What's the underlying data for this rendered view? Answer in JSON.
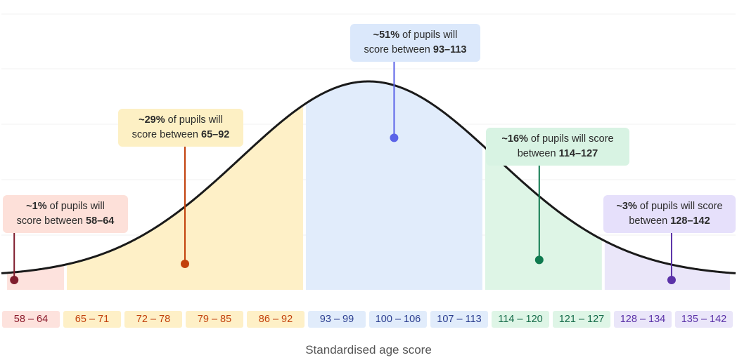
{
  "chart_data": {
    "type": "area",
    "xlabel": "Standardised age score",
    "curve": {
      "mean": 100,
      "sd": 15
    },
    "xlim": [
      57,
      143
    ],
    "bands": [
      {
        "range": [
          58,
          64
        ],
        "fill": "#fde2dd",
        "text": "#8b1a2b"
      },
      {
        "range": [
          65,
          92
        ],
        "fill": "#fef0c7",
        "text": "#c2410c"
      },
      {
        "range": [
          93,
          113
        ],
        "fill": "#e1ecfb",
        "text": "#2a3d8f"
      },
      {
        "range": [
          114,
          127
        ],
        "fill": "#def5e6",
        "text": "#166c4a"
      },
      {
        "range": [
          128,
          142
        ],
        "fill": "#eae6f9",
        "text": "#5b32a8"
      }
    ],
    "bins": [
      {
        "label": "58 – 64",
        "band": 0
      },
      {
        "label": "65 – 71",
        "band": 1
      },
      {
        "label": "72 – 78",
        "band": 1
      },
      {
        "label": "79 – 85",
        "band": 1
      },
      {
        "label": "86 – 92",
        "band": 1
      },
      {
        "label": "93 – 99",
        "band": 2
      },
      {
        "label": "100 – 106",
        "band": 2
      },
      {
        "label": "107 – 113",
        "band": 2
      },
      {
        "label": "114 – 120",
        "band": 3
      },
      {
        "label": "121 – 127",
        "band": 3
      },
      {
        "label": "128 – 134",
        "band": 4
      },
      {
        "label": "135 – 142",
        "band": 4
      }
    ],
    "annotations": [
      {
        "pct": "~1%",
        "text1": " of pupils will",
        "text2": "score between ",
        "range": "58–64",
        "box": "#fde0d9",
        "line": "#7f1d2d",
        "marker_x": 58.5,
        "marker_level": 0.0
      },
      {
        "pct": "~29%",
        "text1": " of pupils will",
        "text2": "score between ",
        "range": "65–92",
        "box": "#fdf0c4",
        "line": "#c2410c",
        "marker_x": 78.5,
        "marker_level": 0.22
      },
      {
        "pct": "~51%",
        "text1": " of pupils will",
        "text2": "score between ",
        "range": "93–113",
        "box": "#dbe8fb",
        "line": "#5b63e8",
        "marker_x": 103,
        "marker_level": 0.73
      },
      {
        "pct": "~16%",
        "text1": " of pupils will score",
        "text2": "between ",
        "range": "114–127",
        "box": "#d8f3e3",
        "line": "#0f7a4f",
        "marker_x": 120,
        "marker_level": 0.24
      },
      {
        "pct": "~3%",
        "text1": " of pupils will score",
        "text2": "between ",
        "range": "128–142",
        "box": "#e6e0fb",
        "line": "#5b32a8",
        "marker_x": 135.5,
        "marker_level": 0.0
      }
    ],
    "grid": true
  }
}
